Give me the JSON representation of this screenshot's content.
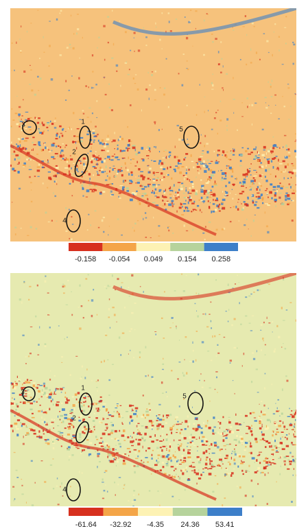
{
  "panels": [
    {
      "colorbar": {
        "colors": [
          "#d7301f",
          "#f4a548",
          "#fdf2b4",
          "#b6d39c",
          "#3d7fc9"
        ],
        "labels": [
          -0.158,
          -0.054,
          0.049,
          0.154,
          0.258
        ]
      },
      "background": "#f6c27c",
      "markers": [
        "1",
        "2",
        "3",
        "4",
        "5"
      ]
    },
    {
      "colorbar": {
        "colors": [
          "#d7301f",
          "#f4a548",
          "#fdf2b4",
          "#b6d39c",
          "#3d7fc9"
        ],
        "labels": [
          -61.64,
          -32.92,
          -4.35,
          24.36,
          53.41
        ]
      },
      "background": "#e6eab0",
      "markers": [
        "1",
        "2",
        "3",
        "4",
        "5"
      ]
    }
  ]
}
